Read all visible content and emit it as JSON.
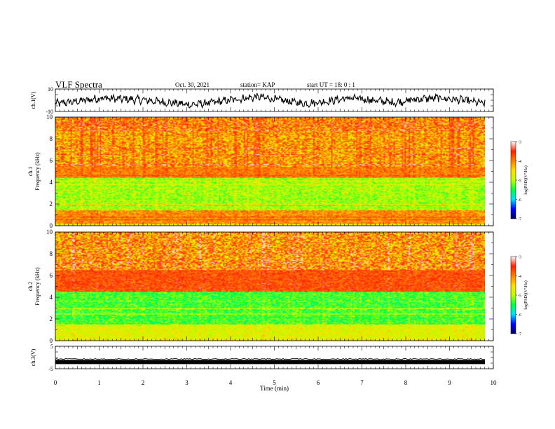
{
  "header": {
    "title": "VLF Spectra",
    "date": "Oct. 30, 2021",
    "station": "station= KAP",
    "start": "start  UT  =   18: 0  : 1"
  },
  "colors": {
    "ramp": [
      "#000060",
      "#0000ff",
      "#00e0ff",
      "#00ff40",
      "#c0ff00",
      "#ffe000",
      "#ff8000",
      "#ff2000",
      "#ffffff"
    ]
  },
  "chart_data": [
    {
      "type": "line",
      "panel": "ch1-waveform",
      "ylabel": "ch.1(V)",
      "ylim": [
        -10,
        10
      ],
      "yticks": [
        "10",
        "-10"
      ],
      "x_range_min": [
        0,
        9.8
      ],
      "approx_level_v": [
        -3,
        -1,
        2,
        1,
        0,
        -2,
        -4,
        -2,
        1,
        3,
        0,
        -3,
        -1,
        2,
        0,
        -2,
        1,
        2,
        0,
        -3
      ]
    },
    {
      "type": "heatmap",
      "panel": "ch1-spectrogram",
      "ylabel": "ch.1\nFrequency (kHz)",
      "ylim": [
        0,
        10
      ],
      "yticks": [
        "0",
        "2",
        "4",
        "6",
        "8",
        "10"
      ],
      "colorbar": {
        "label": "log(PSD)(V²/Hz)",
        "range": [
          -7,
          -3
        ],
        "ticks": [
          "-3",
          "-4",
          "-5",
          "-6",
          "-7"
        ]
      },
      "dominant_band_kHz": [
        [
          5.4,
          10,
          "red"
        ],
        [
          4.4,
          5.4,
          "yellow-red"
        ],
        [
          1.4,
          4.4,
          "green"
        ],
        [
          0.2,
          1.4,
          "red-orange"
        ]
      ]
    },
    {
      "type": "heatmap",
      "panel": "ch2-spectrogram",
      "ylabel": "ch.2\nFrequency (kHz)",
      "ylim": [
        0,
        10
      ],
      "yticks": [
        "0",
        "2",
        "4",
        "6",
        "8",
        "10"
      ],
      "colorbar": {
        "label": "log(PSD)(V²/Hz)",
        "range": [
          -7,
          -3
        ],
        "ticks": [
          "-3",
          "-4",
          "-5",
          "-6",
          "-7"
        ]
      },
      "dominant_band_kHz": [
        [
          6.5,
          10,
          "red-green"
        ],
        [
          4.5,
          6.5,
          "red"
        ],
        [
          1.5,
          4.5,
          "green-cyan"
        ],
        [
          0.2,
          1.5,
          "green"
        ]
      ]
    },
    {
      "type": "line",
      "panel": "ch3-waveform",
      "ylabel": "ch.3(V)",
      "ylim": [
        -5,
        5
      ],
      "yticks": [
        "5",
        "-5"
      ],
      "level_v": -2
    }
  ],
  "xaxis": {
    "label": "Time (min)",
    "ticks": [
      "0",
      "1",
      "2",
      "3",
      "4",
      "5",
      "6",
      "7",
      "8",
      "9",
      "10"
    ],
    "range": [
      0,
      10
    ]
  }
}
